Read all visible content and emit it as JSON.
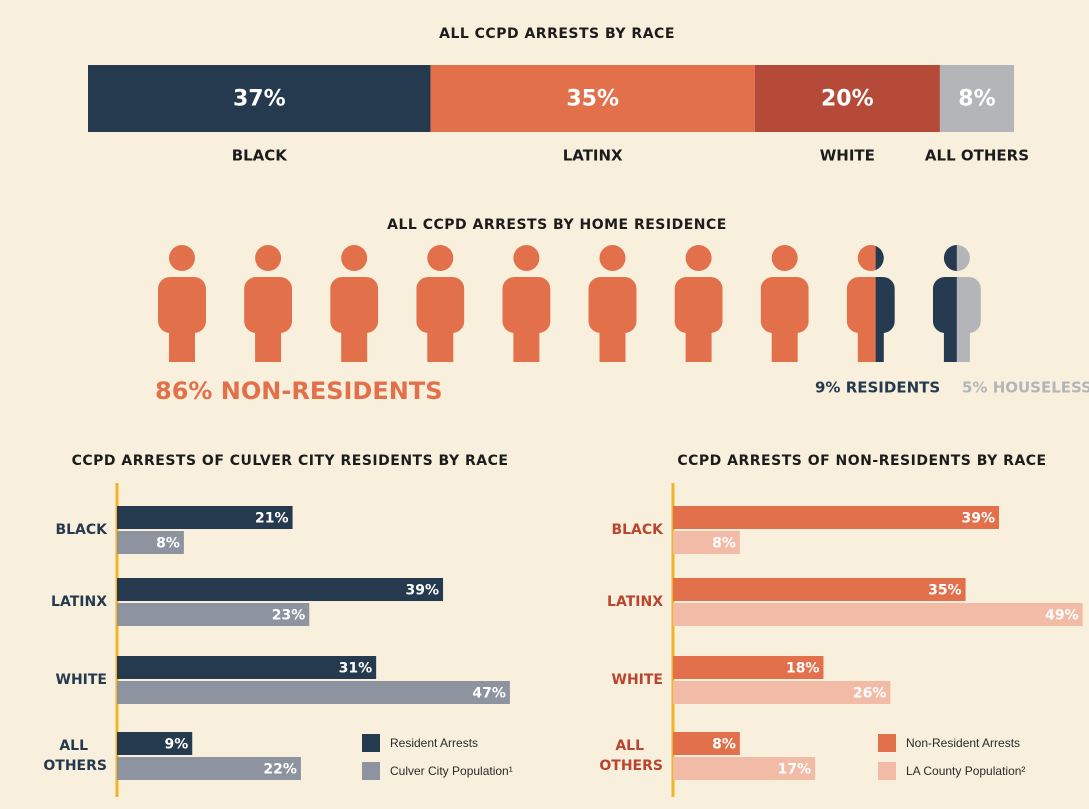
{
  "chart_data": [
    {
      "type": "stacked_bar",
      "title": "ALL CCPD ARRESTS BY RACE",
      "series": [
        {
          "name": "BLACK",
          "color": "#253a4f",
          "values": [
            37
          ],
          "value_labels": [
            "37%"
          ]
        },
        {
          "name": "LATINX",
          "color": "#e2714b",
          "values": [
            35
          ],
          "value_labels": [
            "35%"
          ]
        },
        {
          "name": "WHITE",
          "color": "#b54a38",
          "values": [
            20
          ],
          "value_labels": [
            "20%"
          ]
        },
        {
          "name": "ALL OTHERS",
          "color": "#b3b5b8",
          "values": [
            8
          ],
          "value_labels": [
            "8%"
          ]
        }
      ]
    },
    {
      "type": "pictograph",
      "title": "ALL CCPD ARRESTS BY HOME RESIDENCE",
      "values": [
        86,
        9,
        5
      ],
      "value_labels": [
        "86% NON-RESIDENTS",
        "9% RESIDENTS",
        "5% HOUSELESS"
      ],
      "colors": [
        "#e2714b",
        "#253a4f",
        "#b3b5b8"
      ]
    },
    {
      "type": "hbar",
      "title": "CCPD ARRESTS OF CULVER CITY RESIDENTS BY RACE",
      "categories": [
        "BLACK",
        "LATINX",
        "WHITE",
        "ALL OTHERS"
      ],
      "category_color": "#253a4f",
      "xlim": [
        0,
        50
      ],
      "legend": "bottom-right",
      "series": [
        {
          "name": "Resident Arrests",
          "color": "#253a4f",
          "values": [
            21,
            39,
            31,
            9
          ],
          "value_labels": [
            "21%",
            "39%",
            "31%",
            "9%"
          ]
        },
        {
          "name": "Culver City Population¹",
          "color": "#8e93a0",
          "values": [
            8,
            23,
            47,
            22
          ],
          "value_labels": [
            "8%",
            "23%",
            "47%",
            "22%"
          ]
        }
      ]
    },
    {
      "type": "hbar",
      "title": "CCPD ARRESTS OF NON-RESIDENTS BY RACE",
      "categories": [
        "BLACK",
        "LATINX",
        "WHITE",
        "ALL OTHERS"
      ],
      "category_color": "#b8452f",
      "xlim": [
        0,
        50
      ],
      "legend": "bottom-right",
      "series": [
        {
          "name": "Non-Resident Arrests",
          "color": "#e2714b",
          "values": [
            39,
            35,
            18,
            8
          ],
          "value_labels": [
            "39%",
            "35%",
            "18%",
            "8%"
          ]
        },
        {
          "name": "LA County Population²",
          "color": "#f2bba5",
          "values": [
            8,
            49,
            26,
            17
          ],
          "value_labels": [
            "8%",
            "49%",
            "26%",
            "17%"
          ]
        }
      ]
    }
  ]
}
